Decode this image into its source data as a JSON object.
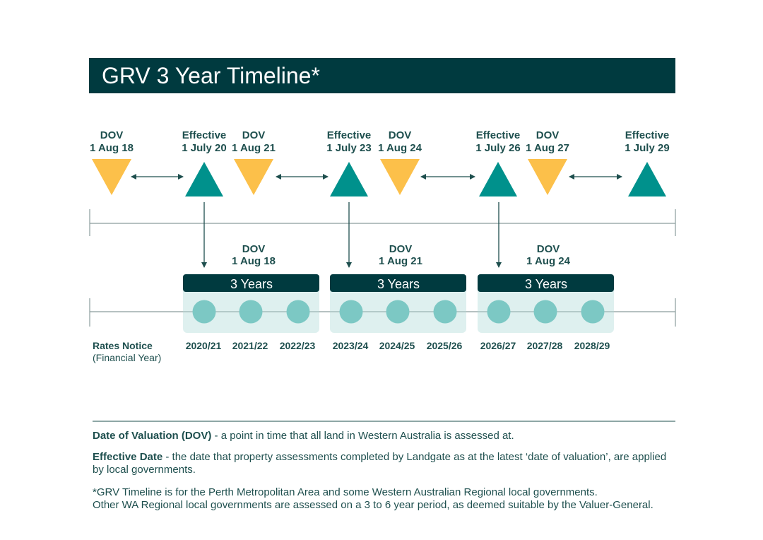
{
  "title": "GRV 3 Year Timeline*",
  "colors": {
    "dark": "#003a3f",
    "teal": "#00918c",
    "yellow": "#fcc04a",
    "circle": "#7cc8c4",
    "band": "#def0ef",
    "text": "#1e4f4e"
  },
  "top_markers": [
    {
      "kind": "dov",
      "line1": "DOV",
      "line2": "1 Aug 18"
    },
    {
      "kind": "effective",
      "line1": "Effective",
      "line2": "1 July 20"
    },
    {
      "kind": "dov",
      "line1": "DOV",
      "line2": "1 Aug 21"
    },
    {
      "kind": "effective",
      "line1": "Effective",
      "line2": "1 July 23"
    },
    {
      "kind": "dov",
      "line1": "DOV",
      "line2": "1 Aug 24"
    },
    {
      "kind": "effective",
      "line1": "Effective",
      "line2": "1 July 26"
    },
    {
      "kind": "dov",
      "line1": "DOV",
      "line2": "1 Aug 27"
    },
    {
      "kind": "effective",
      "line1": "Effective",
      "line2": "1 July 29"
    }
  ],
  "periods": [
    {
      "dov_line1": "DOV",
      "dov_line2": "1 Aug 18",
      "label": "3 Years",
      "years": [
        "2020/21",
        "2021/22",
        "2022/23"
      ]
    },
    {
      "dov_line1": "DOV",
      "dov_line2": "1 Aug 21",
      "label": "3 Years",
      "years": [
        "2023/24",
        "2024/25",
        "2025/26"
      ]
    },
    {
      "dov_line1": "DOV",
      "dov_line2": "1 Aug 24",
      "label": "3 Years",
      "years": [
        "2026/27",
        "2027/28",
        "2028/29"
      ]
    }
  ],
  "rates_label": "Rates Notice",
  "rates_sublabel": "(Financial Year)",
  "notes": {
    "dov_term": "Date of Valuation (DOV)",
    "dov_text": " - a point in time that all land in Western Australia is assessed at.",
    "eff_term": "Effective Date",
    "eff_text": " - the date that property assessments completed by Landgate as at the latest ‘date of valuation’, are applied by local governments.",
    "footnote1": "*GRV Timeline is for the Perth Metropolitan Area and some Western Australian Regional local governments.",
    "footnote2": "Other WA Regional local governments are assessed on a 3 to 6 year period, as deemed suitable by the Valuer-General."
  }
}
